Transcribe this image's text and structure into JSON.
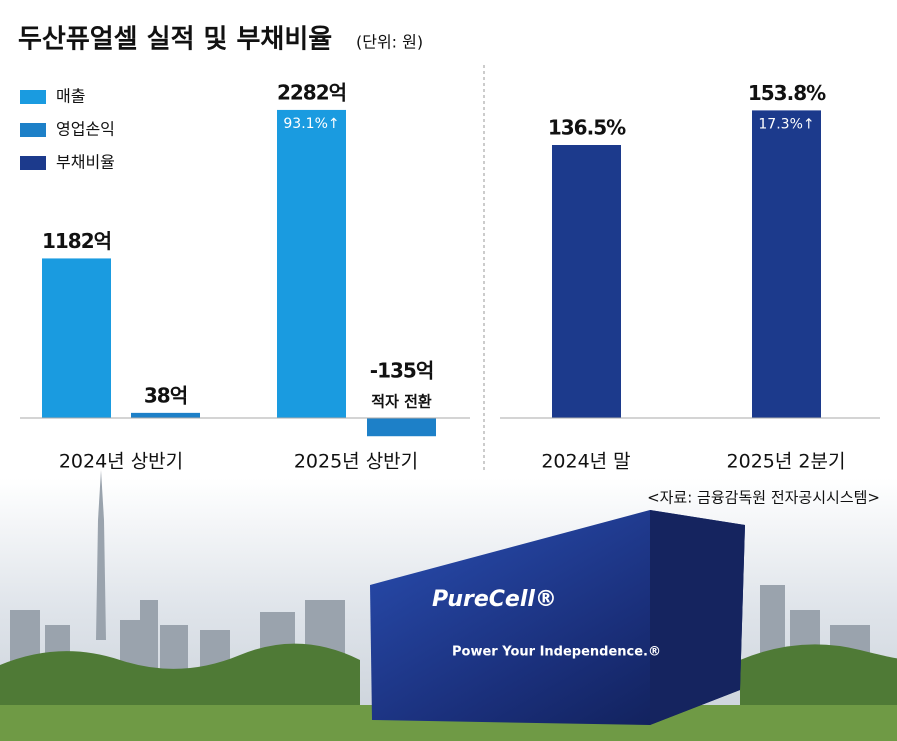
{
  "title": "두산퓨얼셀 실적 및 부채비율",
  "subtitle": "(단위: 원)",
  "source": "<자료: 금융감독원 전자공시시스템>",
  "photo": {
    "brand": "PureCell®",
    "slogan": "Power Your Independence.®"
  },
  "chart_data": [
    {
      "type": "bar",
      "categories": [
        "2024년 상반기",
        "2025년 상반기"
      ],
      "series": [
        {
          "name": "매출",
          "color": "#1a9be0",
          "values": [
            1182,
            2282
          ],
          "value_labels": [
            "1182억",
            "2282억"
          ]
        },
        {
          "name": "영업손익",
          "color": "#1d80c8",
          "values": [
            38,
            -135
          ],
          "value_labels": [
            "38억",
            "-135억"
          ]
        }
      ],
      "annotations": [
        "93.1%↑",
        "적자 전환"
      ],
      "ylim": [
        -200,
        2500
      ]
    },
    {
      "type": "bar",
      "categories": [
        "2024년 말",
        "2025년 2분기"
      ],
      "series": [
        {
          "name": "부채비율",
          "color": "#1c3a8c",
          "values": [
            136.5,
            153.8
          ],
          "value_labels": [
            "136.5%",
            "153.8%"
          ]
        }
      ],
      "annotations": [
        "17.3%↑"
      ],
      "ylim": [
        0,
        170
      ]
    }
  ]
}
